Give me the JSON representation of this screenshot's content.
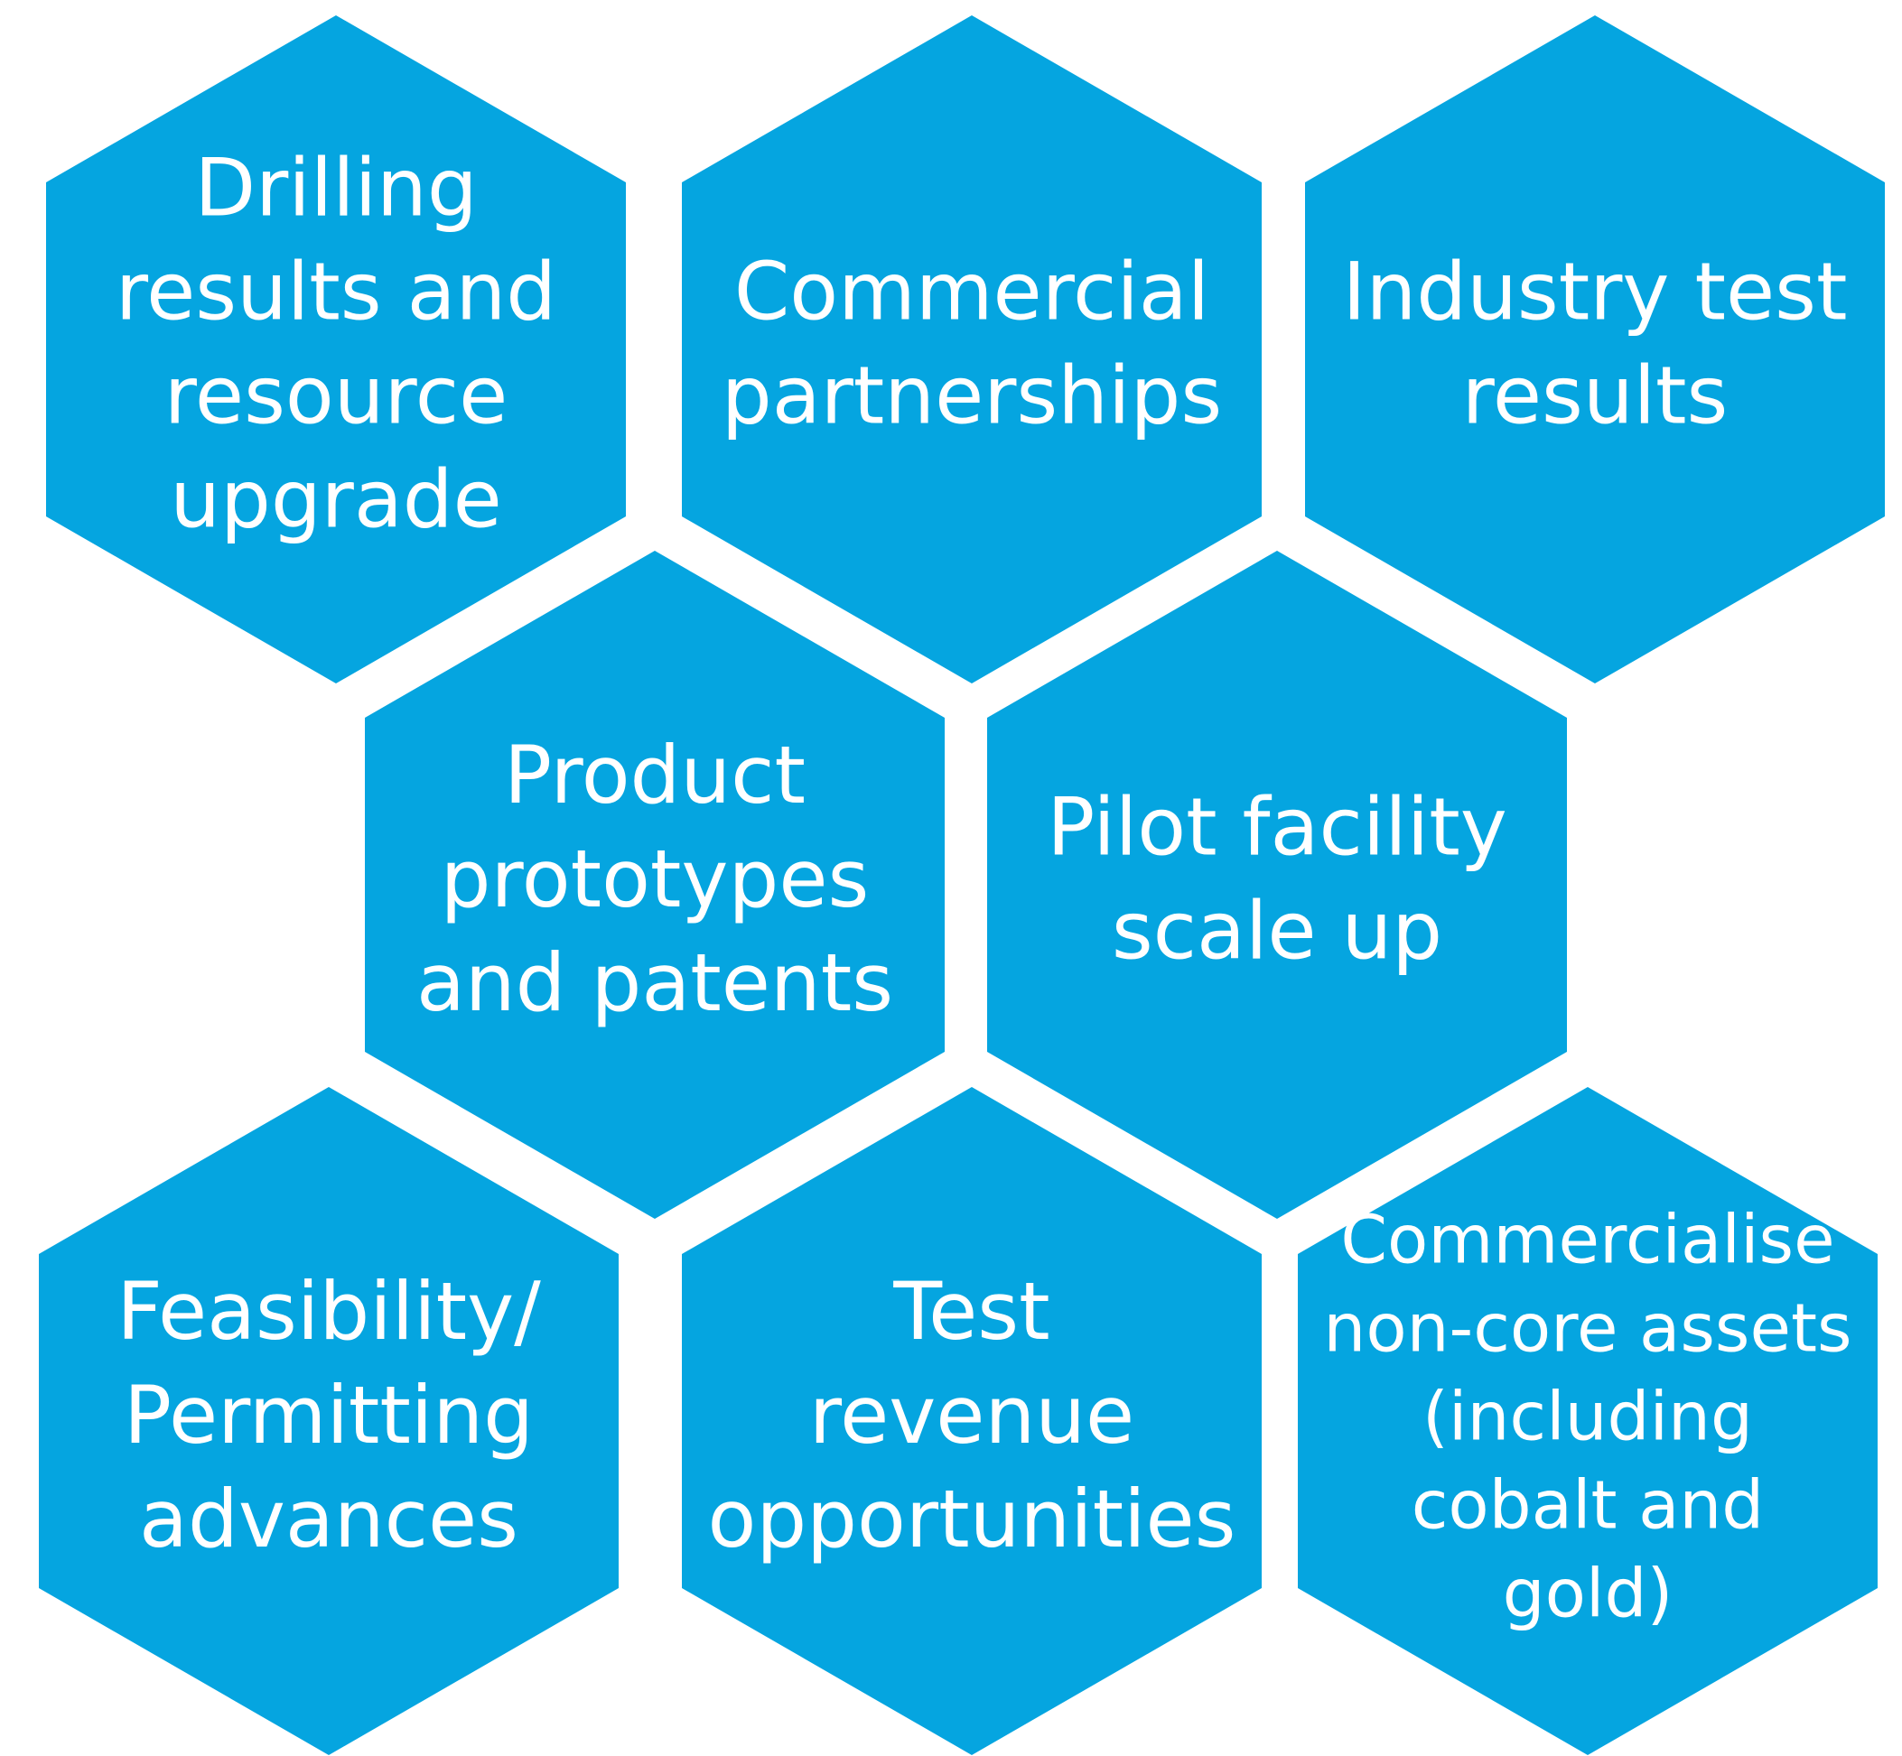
{
  "hexagons": [
    {
      "lines": [
        "Drilling",
        "results and",
        "resource",
        "upgrade"
      ]
    },
    {
      "lines": [
        "Commercial",
        "partnerships"
      ]
    },
    {
      "lines": [
        "Industry test",
        "results"
      ]
    },
    {
      "lines": [
        "Product",
        "prototypes",
        "and patents"
      ]
    },
    {
      "lines": [
        "Pilot facility",
        "scale up"
      ]
    },
    {
      "lines": [
        "Feasibility/",
        "Permitting",
        "advances"
      ]
    },
    {
      "lines": [
        "Test",
        "revenue",
        "opportunities"
      ]
    },
    {
      "lines": [
        "Commercialise",
        "non-core assets",
        "(including",
        "cobalt and",
        "gold)"
      ]
    }
  ]
}
